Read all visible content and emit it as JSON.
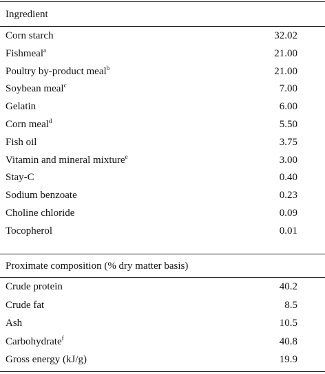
{
  "header": {
    "title": "Ingredient"
  },
  "ingredients": [
    {
      "name": "Corn starch",
      "value": "32.02"
    },
    {
      "name": "Fishmeal",
      "note": "a",
      "value": "21.00"
    },
    {
      "name": "Poultry by-product meal",
      "note": "b",
      "value": "21.00"
    },
    {
      "name": "Soybean meal",
      "note": "c",
      "value": "7.00"
    },
    {
      "name": "Gelatin",
      "value": "6.00"
    },
    {
      "name": "Corn meal",
      "note": "d",
      "value": "5.50"
    },
    {
      "name": "Fish oil",
      "value": "3.75"
    },
    {
      "name": "Vitamin and mineral mixture",
      "note": "e",
      "value": "3.00"
    },
    {
      "name": "Stay-C",
      "value": "0.40"
    },
    {
      "name": "Sodium benzoate",
      "value": "0.23"
    },
    {
      "name": "Choline chloride",
      "value": "0.09"
    },
    {
      "name": "Tocopherol",
      "value": "0.01"
    }
  ],
  "proximate": {
    "title": "Proximate composition (% dry matter basis)",
    "rows": [
      {
        "name": "Crude protein",
        "value": "40.2"
      },
      {
        "name": "Crude fat",
        "value": "8.5"
      },
      {
        "name": "Ash",
        "value": "10.5"
      },
      {
        "name": "Carbohydrate",
        "note": "f",
        "value": "40.8"
      },
      {
        "name": "Gross energy (kJ/g)",
        "value": "19.9"
      }
    ]
  }
}
